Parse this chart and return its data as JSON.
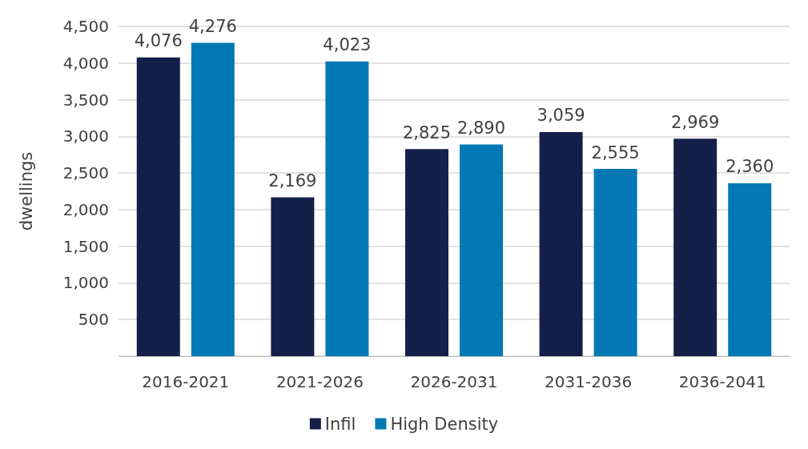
{
  "chart_data": {
    "type": "bar",
    "ylabel": "dwellings",
    "categories": [
      "2016-2021",
      "2021-2026",
      "2026-2031",
      "2031-2036",
      "2036-2041"
    ],
    "series": [
      {
        "name": "Infil",
        "color": "#14204a",
        "values": [
          4076,
          2169,
          2825,
          3059,
          2969
        ],
        "value_labels": [
          "4,076",
          "2,169",
          "2,825",
          "3,059",
          "2,969"
        ]
      },
      {
        "name": "High Density",
        "color": "#0279b5",
        "values": [
          4276,
          4023,
          2890,
          2555,
          2360
        ],
        "value_labels": [
          "4,276",
          "4,023",
          "2,890",
          "2,555",
          "2,360"
        ]
      }
    ],
    "ylim": [
      0,
      4500
    ],
    "yticks": [
      {
        "value": 0,
        "label": null
      },
      {
        "value": 500,
        "label": "500"
      },
      {
        "value": 1000,
        "label": "1,000"
      },
      {
        "value": 1500,
        "label": "1,500"
      },
      {
        "value": 2000,
        "label": "2,000"
      },
      {
        "value": 2500,
        "label": "2,500"
      },
      {
        "value": 3000,
        "label": "3,000"
      },
      {
        "value": 3500,
        "label": "3,500"
      },
      {
        "value": 4000,
        "label": "4,000"
      },
      {
        "value": 4500,
        "label": "4,500"
      }
    ],
    "grid": "y",
    "legend": "bottom"
  }
}
